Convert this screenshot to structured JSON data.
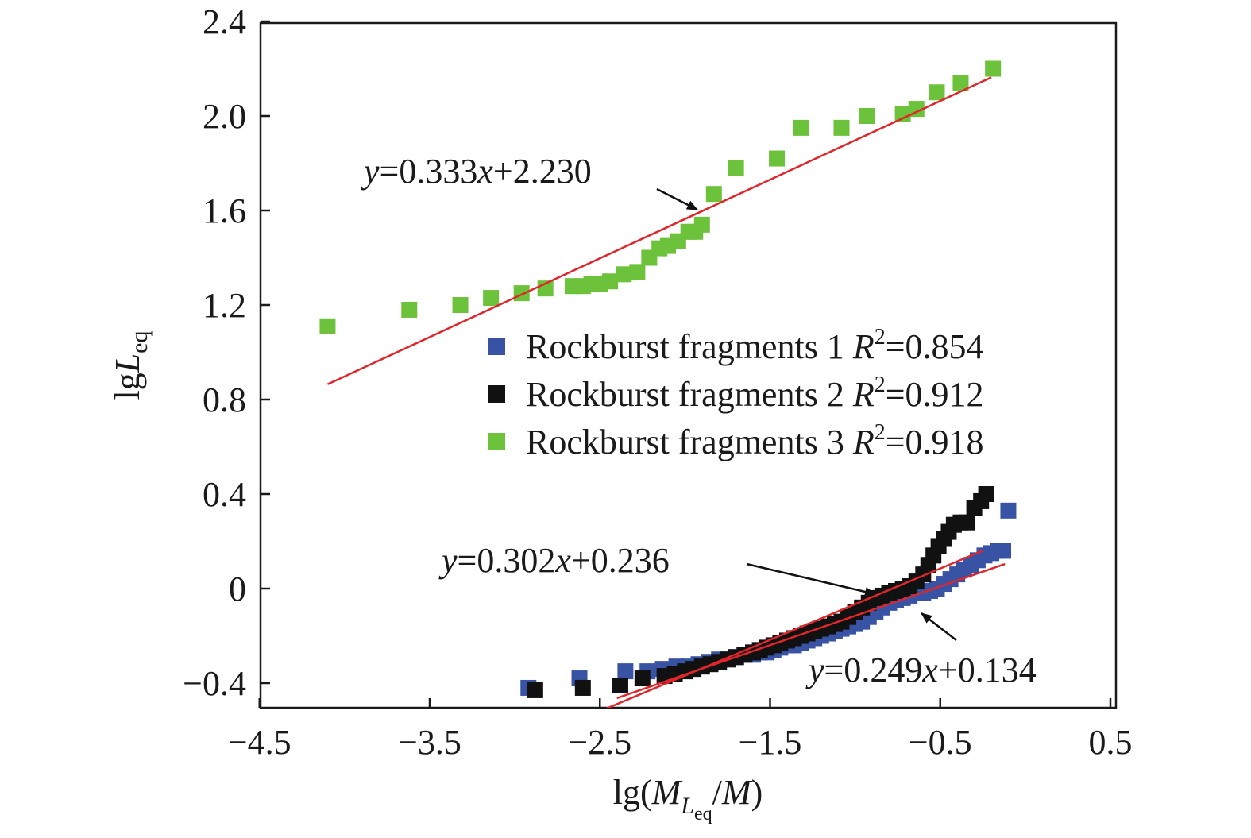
{
  "chart_data": {
    "type": "scatter",
    "xlabel": {
      "base": "lg(",
      "italic1": "M",
      "sub1": "L",
      "sub2": "eq",
      "rest": "/",
      "italic2": "M",
      "close": ")"
    },
    "ylabel": {
      "base": "lg",
      "italic": "L",
      "sub": "eq"
    },
    "xlim": [
      -4.5,
      0.5
    ],
    "ylim": [
      -0.5,
      2.4
    ],
    "xticks": [
      -4.5,
      -3.5,
      -2.5,
      -1.5,
      -0.5,
      0.5
    ],
    "yticks": [
      -0.4,
      0,
      0.4,
      0.8,
      1.2,
      1.6,
      2.0,
      2.4
    ],
    "xtick_labels": [
      "−4.5",
      "−3.5",
      "−2.5",
      "−1.5",
      "−0.5",
      "0.5"
    ],
    "ytick_labels": [
      "−0.4",
      "0",
      "0.4",
      "0.8",
      "1.2",
      "1.6",
      "2.0",
      "2.4"
    ],
    "grid": false,
    "legend_position": "center-right",
    "series": [
      {
        "name": "Rockburst fragments 1",
        "r2_label": "R",
        "r2_value": "=0.854",
        "color": "#3953a4",
        "fit": {
          "slope": 0.249,
          "intercept": 0.134,
          "x_range": [
            -2.4,
            -0.12
          ],
          "label": "y=0.249x+0.134"
        },
        "points": [
          [
            -2.92,
            -0.42
          ],
          [
            -2.62,
            -0.38
          ],
          [
            -2.35,
            -0.35
          ],
          [
            -2.22,
            -0.35
          ],
          [
            -2.13,
            -0.34
          ],
          [
            -2.05,
            -0.33
          ],
          [
            -1.98,
            -0.33
          ],
          [
            -1.92,
            -0.32
          ],
          [
            -1.86,
            -0.31
          ],
          [
            -1.8,
            -0.3
          ],
          [
            -1.75,
            -0.3
          ],
          [
            -1.7,
            -0.29
          ],
          [
            -1.65,
            -0.28
          ],
          [
            -1.6,
            -0.28
          ],
          [
            -1.56,
            -0.27
          ],
          [
            -1.52,
            -0.27
          ],
          [
            -1.48,
            -0.26
          ],
          [
            -1.44,
            -0.25
          ],
          [
            -1.4,
            -0.24
          ],
          [
            -1.36,
            -0.24
          ],
          [
            -1.32,
            -0.23
          ],
          [
            -1.28,
            -0.22
          ],
          [
            -1.24,
            -0.21
          ],
          [
            -1.2,
            -0.2
          ],
          [
            -1.16,
            -0.19
          ],
          [
            -1.12,
            -0.18
          ],
          [
            -1.08,
            -0.17
          ],
          [
            -1.04,
            -0.16
          ],
          [
            -1.0,
            -0.15
          ],
          [
            -0.96,
            -0.14
          ],
          [
            -0.92,
            -0.12
          ],
          [
            -0.88,
            -0.1
          ],
          [
            -0.84,
            -0.08
          ],
          [
            -0.8,
            -0.06
          ],
          [
            -0.76,
            -0.05
          ],
          [
            -0.72,
            -0.04
          ],
          [
            -0.68,
            -0.03
          ],
          [
            -0.64,
            -0.02
          ],
          [
            -0.6,
            -0.02
          ],
          [
            -0.56,
            -0.01
          ],
          [
            -0.52,
            0.0
          ],
          [
            -0.48,
            0.02
          ],
          [
            -0.44,
            0.04
          ],
          [
            -0.4,
            0.06
          ],
          [
            -0.36,
            0.08
          ],
          [
            -0.32,
            0.1
          ],
          [
            -0.28,
            0.12
          ],
          [
            -0.24,
            0.14
          ],
          [
            -0.2,
            0.15
          ],
          [
            -0.16,
            0.16
          ],
          [
            -0.13,
            0.16
          ],
          [
            -0.1,
            0.33
          ]
        ]
      },
      {
        "name": "Rockburst fragments 2",
        "r2_label": "R",
        "r2_value": "=0.912",
        "color": "#111111",
        "fit": {
          "slope": 0.302,
          "intercept": 0.236,
          "x_range": [
            -2.5,
            -0.25
          ],
          "label": "y=0.302x+0.236"
        },
        "points": [
          [
            -2.88,
            -0.43
          ],
          [
            -2.6,
            -0.42
          ],
          [
            -2.38,
            -0.41
          ],
          [
            -2.25,
            -0.38
          ],
          [
            -2.12,
            -0.37
          ],
          [
            -2.06,
            -0.36
          ],
          [
            -2.0,
            -0.35
          ],
          [
            -1.95,
            -0.34
          ],
          [
            -1.9,
            -0.33
          ],
          [
            -1.85,
            -0.32
          ],
          [
            -1.8,
            -0.31
          ],
          [
            -1.75,
            -0.3
          ],
          [
            -1.7,
            -0.29
          ],
          [
            -1.65,
            -0.28
          ],
          [
            -1.6,
            -0.27
          ],
          [
            -1.56,
            -0.26
          ],
          [
            -1.52,
            -0.25
          ],
          [
            -1.48,
            -0.24
          ],
          [
            -1.44,
            -0.23
          ],
          [
            -1.4,
            -0.22
          ],
          [
            -1.36,
            -0.21
          ],
          [
            -1.32,
            -0.2
          ],
          [
            -1.28,
            -0.19
          ],
          [
            -1.24,
            -0.18
          ],
          [
            -1.2,
            -0.17
          ],
          [
            -1.16,
            -0.16
          ],
          [
            -1.12,
            -0.15
          ],
          [
            -1.08,
            -0.14
          ],
          [
            -1.04,
            -0.12
          ],
          [
            -1.0,
            -0.1
          ],
          [
            -0.96,
            -0.08
          ],
          [
            -0.92,
            -0.06
          ],
          [
            -0.88,
            -0.04
          ],
          [
            -0.84,
            -0.03
          ],
          [
            -0.8,
            -0.02
          ],
          [
            -0.76,
            -0.01
          ],
          [
            -0.72,
            0.0
          ],
          [
            -0.68,
            0.01
          ],
          [
            -0.64,
            0.03
          ],
          [
            -0.6,
            0.06
          ],
          [
            -0.57,
            0.1
          ],
          [
            -0.54,
            0.14
          ],
          [
            -0.51,
            0.18
          ],
          [
            -0.48,
            0.21
          ],
          [
            -0.45,
            0.24
          ],
          [
            -0.42,
            0.27
          ],
          [
            -0.38,
            0.28
          ],
          [
            -0.34,
            0.28
          ],
          [
            -0.3,
            0.34
          ],
          [
            -0.26,
            0.37
          ],
          [
            -0.23,
            0.4
          ]
        ]
      },
      {
        "name": "Rockburst fragments 3",
        "r2_label": "R",
        "r2_value": "=0.918",
        "color": "#6cc23a",
        "fit": {
          "slope": 0.333,
          "intercept": 2.23,
          "x_range": [
            -4.1,
            -0.2
          ],
          "label": "y=0.333x+2.230"
        },
        "points": [
          [
            -4.1,
            1.11
          ],
          [
            -3.62,
            1.18
          ],
          [
            -3.32,
            1.2
          ],
          [
            -3.14,
            1.23
          ],
          [
            -2.96,
            1.25
          ],
          [
            -2.82,
            1.27
          ],
          [
            -2.66,
            1.28
          ],
          [
            -2.6,
            1.28
          ],
          [
            -2.55,
            1.29
          ],
          [
            -2.5,
            1.29
          ],
          [
            -2.44,
            1.3
          ],
          [
            -2.36,
            1.33
          ],
          [
            -2.28,
            1.34
          ],
          [
            -2.21,
            1.4
          ],
          [
            -2.15,
            1.44
          ],
          [
            -2.1,
            1.45
          ],
          [
            -2.04,
            1.47
          ],
          [
            -1.98,
            1.51
          ],
          [
            -1.94,
            1.51
          ],
          [
            -1.9,
            1.54
          ],
          [
            -1.83,
            1.67
          ],
          [
            -1.7,
            1.78
          ],
          [
            -1.46,
            1.82
          ],
          [
            -1.32,
            1.95
          ],
          [
            -1.08,
            1.95
          ],
          [
            -0.93,
            2.0
          ],
          [
            -0.72,
            2.01
          ],
          [
            -0.64,
            2.03
          ],
          [
            -0.52,
            2.1
          ],
          [
            -0.38,
            2.14
          ],
          [
            -0.19,
            2.2
          ]
        ]
      }
    ],
    "annotations": [
      {
        "text_pre": "y",
        "text_mid": "=0.333",
        "text_x": "x",
        "text_post": "+2.230"
      },
      {
        "text_pre": "y",
        "text_mid": "=0.302",
        "text_x": "x",
        "text_post": "+0.236"
      },
      {
        "text_pre": "y",
        "text_mid": "=0.249",
        "text_x": "x",
        "text_post": "+0.134"
      }
    ],
    "colors": {
      "fit_line": "#e0262a",
      "axis": "#1a1a1a",
      "arrow": "#111111"
    }
  }
}
